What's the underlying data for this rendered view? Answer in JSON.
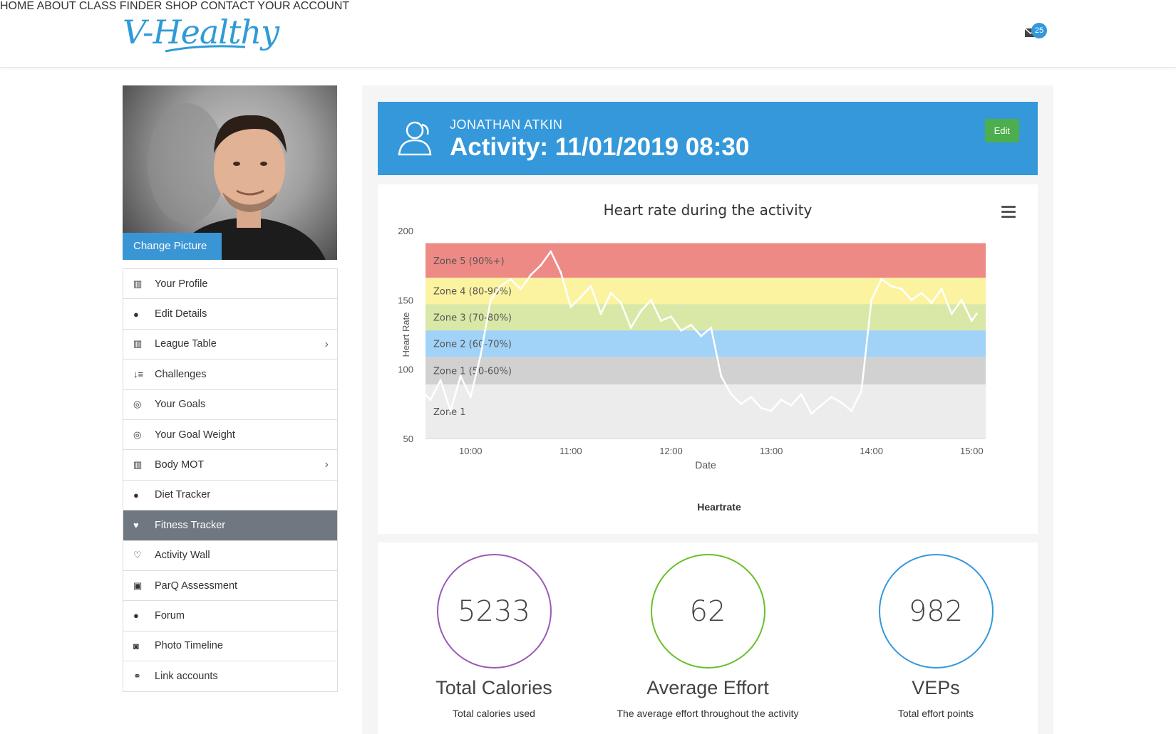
{
  "brand": {
    "logo_text": "V-Healthy"
  },
  "nav": {
    "items": [
      "HOME",
      "ABOUT",
      "CLASS FINDER",
      "SHOP",
      "CONTACT",
      "YOUR ACCOUNT"
    ],
    "mail_count": "25"
  },
  "profile": {
    "change_picture": "Change Picture"
  },
  "sidebar": {
    "items": [
      {
        "label": "Your Profile",
        "icon": "bar-chart-icon"
      },
      {
        "label": "Edit Details",
        "icon": "user-icon"
      },
      {
        "label": "League Table",
        "icon": "bar-chart-icon"
      },
      {
        "label": "Challenges",
        "icon": "sort-icon"
      },
      {
        "label": "Your Goals",
        "icon": "target-icon"
      },
      {
        "label": "Your Goal Weight",
        "icon": "target-icon"
      },
      {
        "label": "Body MOT",
        "icon": "bar-chart-icon"
      },
      {
        "label": "Diet Tracker",
        "icon": "apple-icon"
      },
      {
        "label": "Fitness Tracker",
        "icon": "heart-icon"
      },
      {
        "label": "Activity Wall",
        "icon": "heart-outline-icon"
      },
      {
        "label": "ParQ Assessment",
        "icon": "medkit-icon"
      },
      {
        "label": "Forum",
        "icon": "comment-icon"
      },
      {
        "label": "Photo Timeline",
        "icon": "camera-icon"
      },
      {
        "label": "Link accounts",
        "icon": "link-icon"
      }
    ],
    "active": "Fitness Tracker"
  },
  "header": {
    "user_name": "JONATHAN ATKIN",
    "title": "Activity: 11/01/2019 08:30",
    "edit_label": "Edit",
    "accent": "#3498db"
  },
  "chart_data": {
    "type": "line",
    "title": "Heart rate during the activity",
    "xlabel": "Date",
    "ylabel": "Heart Rate",
    "legend": [
      "Heartrate"
    ],
    "ylim": [
      50,
      200
    ],
    "yticks": [
      50,
      100,
      150,
      200
    ],
    "xticks": [
      "10:00",
      "11:00",
      "12:00",
      "13:00",
      "14:00",
      "15:00"
    ],
    "zones": [
      {
        "label": "Zone 5 (90%+)",
        "from": 166,
        "to": 191,
        "color": "#ee8a86"
      },
      {
        "label": "Zone 4 (80-90%)",
        "from": 147,
        "to": 166,
        "color": "#fbf3a0"
      },
      {
        "label": "Zone 3 (70-80%)",
        "from": 128,
        "to": 147,
        "color": "#d9e8a6"
      },
      {
        "label": "Zone 2 (60-70%)",
        "from": 109,
        "to": 128,
        "color": "#a1d2f7"
      },
      {
        "label": "Zone 1 (50-60%)",
        "from": 89,
        "to": 109,
        "color": "#d1d1d1"
      },
      {
        "label": "Zone 1",
        "from": 50,
        "to": 89,
        "color": "#ececec"
      }
    ],
    "series": [
      {
        "name": "Heartrate",
        "x": [
          9.5,
          9.6,
          9.7,
          9.8,
          9.9,
          10.0,
          10.1,
          10.2,
          10.3,
          10.4,
          10.5,
          10.6,
          10.7,
          10.8,
          10.9,
          11.0,
          11.1,
          11.2,
          11.3,
          11.4,
          11.5,
          11.6,
          11.7,
          11.8,
          11.9,
          12.0,
          12.1,
          12.2,
          12.3,
          12.4,
          12.5,
          12.6,
          12.7,
          12.8,
          12.9,
          13.0,
          13.1,
          13.2,
          13.3,
          13.4,
          13.5,
          13.6,
          13.7,
          13.8,
          13.9,
          14.0,
          14.1,
          14.2,
          14.3,
          14.4,
          14.5,
          14.6,
          14.7,
          14.8,
          14.9,
          15.0,
          15.05
        ],
        "values": [
          85,
          78,
          92,
          70,
          95,
          80,
          110,
          150,
          160,
          165,
          158,
          168,
          175,
          185,
          170,
          145,
          152,
          160,
          140,
          155,
          148,
          130,
          142,
          150,
          135,
          138,
          128,
          132,
          124,
          130,
          95,
          82,
          75,
          80,
          72,
          70,
          78,
          74,
          82,
          68,
          74,
          80,
          76,
          70,
          84,
          150,
          165,
          160,
          158,
          150,
          155,
          148,
          158,
          140,
          150,
          135,
          140
        ]
      }
    ]
  },
  "stats": [
    {
      "value": "5233",
      "label": "Total Calories",
      "desc": "Total calories used",
      "color": "#9b59b6"
    },
    {
      "value": "62",
      "label": "Average Effort",
      "desc": "The average effort throughout the activity",
      "color": "#6abf2a"
    },
    {
      "value": "982",
      "label": "VEPs",
      "desc": "Total effort points",
      "color": "#3498db"
    }
  ]
}
